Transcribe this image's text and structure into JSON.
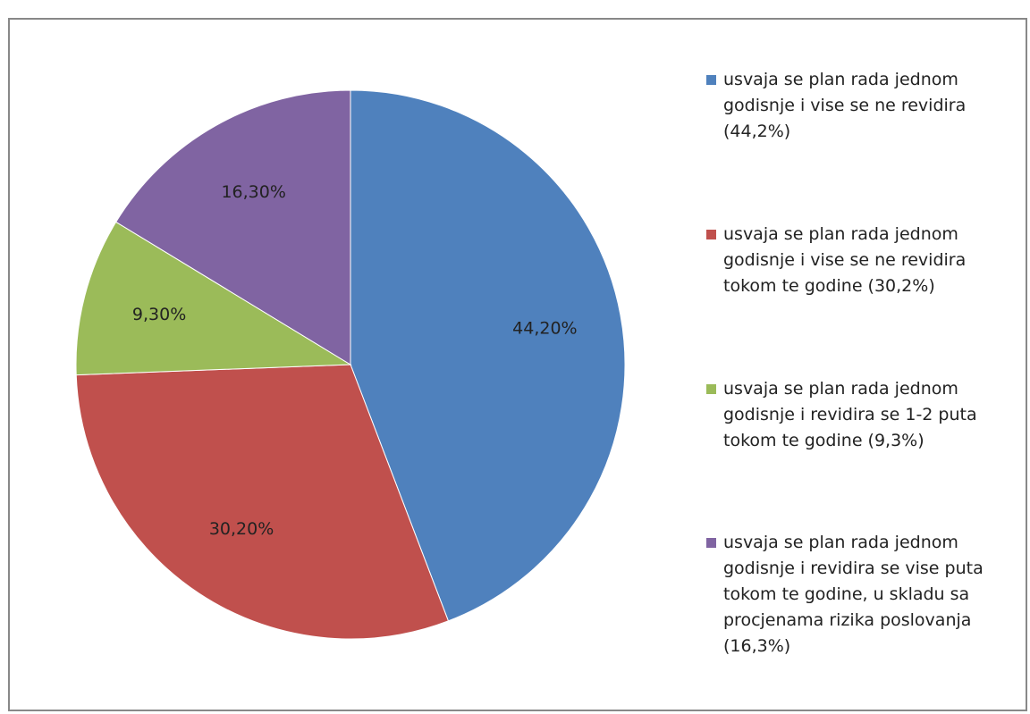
{
  "chart_data": {
    "type": "pie",
    "title": "",
    "categories": [
      "usvaja se plan rada jednom godisnje i vise  se ne revidira (44,2%)",
      "usvaja se plan rada jednom godisnje i vise se ne revidira tokom te godine (30,2%)",
      "usvaja se plan rada jednom godisnje i revidira se 1-2 puta tokom te godine (9,3%)",
      "usvaja se plan rada jednom godisnje i revidira se vise puta tokom te godine, u skladu sa procjenama rizika poslovanja (16,3%)"
    ],
    "values": [
      44.2,
      30.2,
      9.3,
      16.3
    ],
    "data_labels": [
      "44,20%",
      "30,20%",
      "9,30%",
      "16,30%"
    ],
    "colors": [
      "#4F81BD",
      "#C0504D",
      "#9BBB59",
      "#8064A2"
    ],
    "legend_position": "right",
    "start_angle": "12 o'clock",
    "direction": "clockwise"
  }
}
